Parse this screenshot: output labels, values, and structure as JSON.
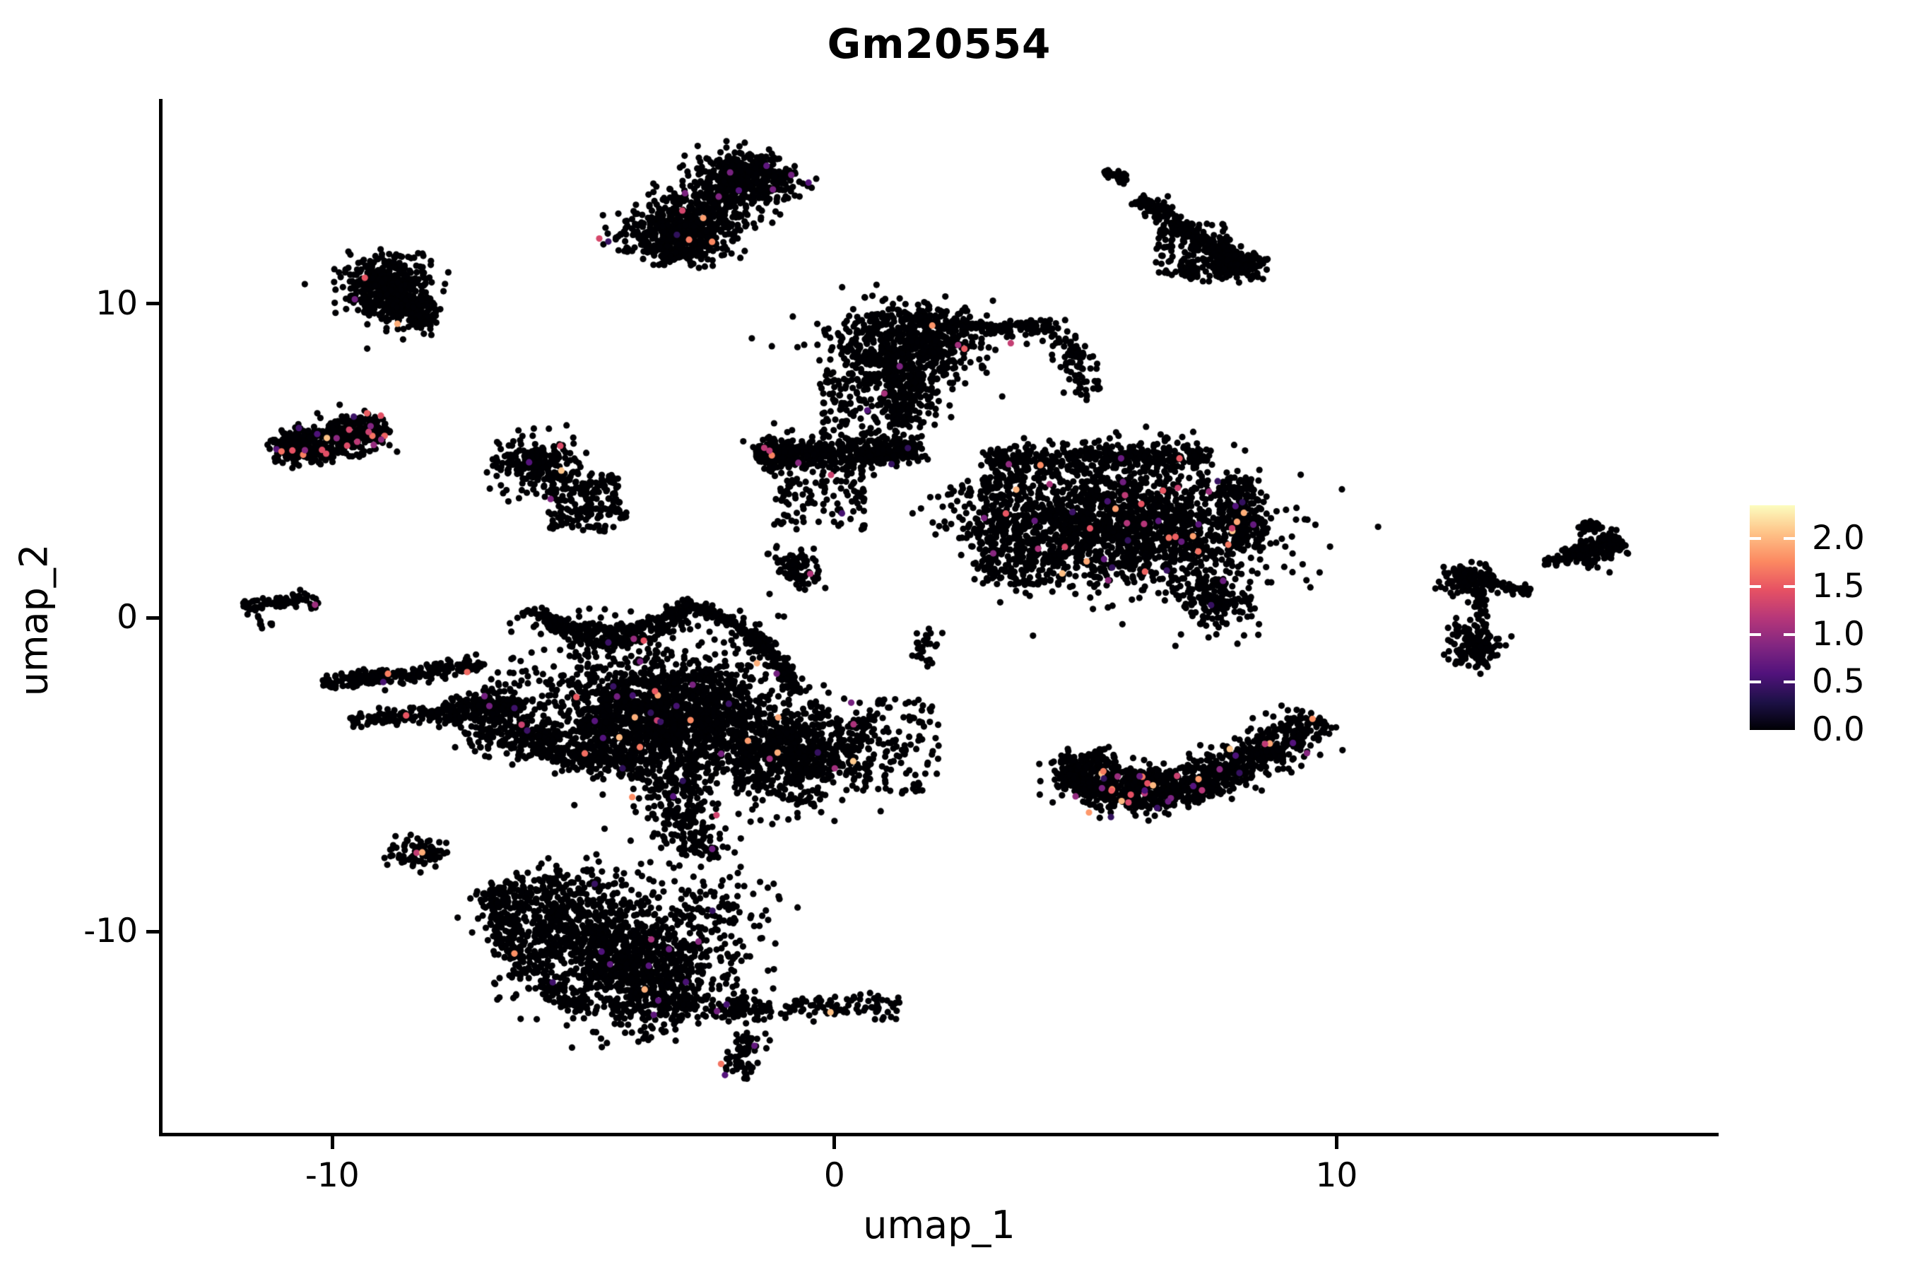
{
  "figure": {
    "title": "Gm20554",
    "background": "#ffffff",
    "axis_color": "#000000"
  },
  "chart_data": {
    "type": "scatter",
    "title": "Gm20554",
    "xlabel": "umap_1",
    "ylabel": "umap_2",
    "xlim": [
      -13.41,
      17.58
    ],
    "ylim": [
      -16.46,
      16.53
    ],
    "x_ticks": [
      -10,
      0,
      10
    ],
    "x_tick_labels": [
      "-10",
      "0",
      "10"
    ],
    "y_ticks": [
      10,
      0,
      -10
    ],
    "y_tick_labels": [
      "10",
      "0",
      "-10"
    ],
    "grid": false,
    "legend_position": "right",
    "point_radius_px": 4.6,
    "zero_expression_color": "#000004",
    "colorbar": {
      "vmin": 0.0,
      "vmax": 2.35,
      "ticks": [
        0.0,
        0.5,
        1.0,
        1.5,
        2.0
      ],
      "tick_labels": [
        "0.0",
        "0.5",
        "1.0",
        "1.5",
        "2.0"
      ],
      "colormap": "magma",
      "stops": [
        [
          0.0,
          "#000004"
        ],
        [
          0.125,
          "#1d1147"
        ],
        [
          0.25,
          "#51127c"
        ],
        [
          0.375,
          "#822681"
        ],
        [
          0.5,
          "#b73779"
        ],
        [
          0.625,
          "#e75263"
        ],
        [
          0.75,
          "#fc8961"
        ],
        [
          0.875,
          "#fec287"
        ],
        [
          1.0,
          "#fcfdbf"
        ]
      ]
    },
    "clusters": [
      {
        "kind": "band",
        "n": 700,
        "cf": 0.008,
        "x1": -3.7,
        "y1": 11.6,
        "x2": -1.4,
        "y2": 14.5,
        "w": 0.5
      },
      {
        "kind": "blob",
        "n": 250,
        "cf": 0.006,
        "cx": -2.9,
        "cy": 12.3,
        "sx": 0.45,
        "sy": 0.4
      },
      {
        "kind": "blob",
        "n": 200,
        "cf": 0.006,
        "cx": -1.7,
        "cy": 14.0,
        "sx": 0.4,
        "sy": 0.35
      },
      {
        "kind": "band",
        "n": 35,
        "cf": 0,
        "x1": 5.35,
        "y1": 14.25,
        "x2": 5.8,
        "y2": 13.95,
        "w": 0.07
      },
      {
        "kind": "band",
        "n": 260,
        "cf": 0.004,
        "x1": 6.05,
        "y1": 13.35,
        "x2": 8.25,
        "y2": 11.05,
        "w": 0.14
      },
      {
        "kind": "blob",
        "n": 160,
        "cf": 0.004,
        "cx": 8.05,
        "cy": 11.25,
        "sx": 0.28,
        "sy": 0.22
      },
      {
        "kind": "uniform",
        "n": 110,
        "cf": 0.004,
        "x0": 6.4,
        "x1": 7.9,
        "y0": 10.85,
        "y1": 12.6
      },
      {
        "kind": "band",
        "n": 30,
        "cf": 0,
        "x1": 6.95,
        "y1": 11.4,
        "x2": 7.15,
        "y2": 10.8,
        "w": 0.1
      },
      {
        "kind": "blob",
        "n": 420,
        "cf": 0.005,
        "cx": -8.95,
        "cy": 10.55,
        "sx": 0.42,
        "sy": 0.5
      },
      {
        "kind": "blob",
        "n": 120,
        "cf": 0.005,
        "cx": -8.35,
        "cy": 9.7,
        "sx": 0.25,
        "sy": 0.3
      },
      {
        "kind": "band",
        "n": 420,
        "cf": 0.045,
        "x1": -11.05,
        "y1": 5.3,
        "x2": -9.0,
        "y2": 6.05,
        "w": 0.28
      },
      {
        "kind": "blob",
        "n": 120,
        "cf": 0.045,
        "cx": -10.6,
        "cy": 5.45,
        "sx": 0.3,
        "sy": 0.25
      },
      {
        "kind": "blob",
        "n": 230,
        "cf": 0.02,
        "cx": -5.95,
        "cy": 4.9,
        "sx": 0.42,
        "sy": 0.45
      },
      {
        "kind": "uniform",
        "n": 130,
        "cf": 0.02,
        "x0": -5.7,
        "x1": -4.3,
        "y0": 2.75,
        "y1": 4.6
      },
      {
        "kind": "band",
        "n": 60,
        "cf": 0.01,
        "x1": -5.0,
        "y1": 4.3,
        "x2": -4.4,
        "y2": 3.0,
        "w": 0.25
      },
      {
        "kind": "band",
        "n": 85,
        "cf": 0.01,
        "x1": -11.75,
        "y1": 0.35,
        "x2": -10.35,
        "y2": 0.6,
        "w": 0.12
      },
      {
        "kind": "blob",
        "n": 7,
        "cf": 0,
        "cx": -11.3,
        "cy": -0.2,
        "sx": 0.08,
        "sy": 0.08
      },
      {
        "kind": "blob",
        "n": 650,
        "cf": 0.01,
        "cx": 1.45,
        "cy": 8.7,
        "sx": 0.75,
        "sy": 0.65
      },
      {
        "kind": "arc",
        "n": 150,
        "cf": 0.005,
        "p": [
          [
            1.6,
            9.6
          ],
          [
            3.0,
            9.0
          ],
          [
            4.35,
            9.35
          ]
        ],
        "w": 0.12
      },
      {
        "kind": "band",
        "n": 90,
        "cf": 0.005,
        "x1": 4.35,
        "y1": 9.3,
        "x2": 5.15,
        "y2": 7.1,
        "w": 0.18
      },
      {
        "kind": "band",
        "n": 200,
        "cf": 0.01,
        "x1": 1.5,
        "y1": 7.95,
        "x2": 1.35,
        "y2": 6.1,
        "w": 0.3
      },
      {
        "kind": "uniform",
        "n": 140,
        "cf": 0.01,
        "x0": -0.3,
        "x1": 1.4,
        "y0": 5.6,
        "y1": 7.9
      },
      {
        "kind": "band",
        "n": 430,
        "cf": 0.01,
        "x1": -1.35,
        "y1": 5.15,
        "x2": 1.7,
        "y2": 5.35,
        "w": 0.2
      },
      {
        "kind": "blob",
        "n": 90,
        "cf": 0.01,
        "cx": -1.25,
        "cy": 5.2,
        "sx": 0.22,
        "sy": 0.28
      },
      {
        "kind": "uniform",
        "n": 130,
        "cf": 0.01,
        "x0": -1.2,
        "x1": 0.6,
        "y0": 2.8,
        "y1": 5.0
      },
      {
        "kind": "blob",
        "n": 90,
        "cf": 0.01,
        "cx": -0.75,
        "cy": 1.6,
        "sx": 0.28,
        "sy": 0.3
      },
      {
        "kind": "blob",
        "n": 1500,
        "cf": 0.02,
        "cx": 5.9,
        "cy": 2.9,
        "sx": 1.25,
        "sy": 1.0
      },
      {
        "kind": "band",
        "n": 380,
        "cf": 0.015,
        "x1": 3.0,
        "y1": 5.05,
        "x2": 7.5,
        "y2": 5.15,
        "w": 0.22
      },
      {
        "kind": "band",
        "n": 220,
        "cf": 0.02,
        "x1": 7.9,
        "y1": 4.4,
        "x2": 8.3,
        "y2": 2.2,
        "w": 0.25
      },
      {
        "kind": "blob",
        "n": 170,
        "cf": 0.02,
        "cx": 7.6,
        "cy": 0.6,
        "sx": 0.35,
        "sy": 0.5
      },
      {
        "kind": "uniform",
        "n": 300,
        "cf": 0.015,
        "x0": 2.9,
        "x1": 4.6,
        "y0": 1.0,
        "y1": 4.6
      },
      {
        "kind": "band",
        "n": 200,
        "cf": 0.015,
        "x1": 2.6,
        "y1": 4.2,
        "x2": 4.2,
        "y2": 1.6,
        "w": 0.5
      },
      {
        "kind": "arc",
        "n": 800,
        "cf": 0.03,
        "p": [
          [
            4.6,
            -4.8
          ],
          [
            6.3,
            -7.3
          ],
          [
            9.65,
            -3.15
          ]
        ],
        "w": 0.3
      },
      {
        "kind": "arc",
        "n": 300,
        "cf": 0.03,
        "p": [
          [
            5.0,
            -4.4
          ],
          [
            6.5,
            -6.2
          ],
          [
            9.3,
            -3.4
          ]
        ],
        "w": 0.25
      },
      {
        "kind": "blob",
        "n": 80,
        "cf": 0.02,
        "cx": 4.75,
        "cy": -4.9,
        "sx": 0.25,
        "sy": 0.3
      },
      {
        "kind": "blob",
        "n": 130,
        "cf": 0.004,
        "cx": 12.6,
        "cy": 1.25,
        "sx": 0.28,
        "sy": 0.25
      },
      {
        "kind": "band",
        "n": 55,
        "cf": 0,
        "x1": 12.95,
        "y1": 1.15,
        "x2": 13.85,
        "y2": 0.8,
        "w": 0.09
      },
      {
        "kind": "band",
        "n": 40,
        "cf": 0,
        "x1": 12.82,
        "y1": 0.85,
        "x2": 12.9,
        "y2": -0.5,
        "w": 0.07
      },
      {
        "kind": "blob",
        "n": 140,
        "cf": 0.004,
        "cx": 12.75,
        "cy": -0.95,
        "sx": 0.26,
        "sy": 0.32
      },
      {
        "kind": "blob",
        "n": 6,
        "cf": 0,
        "cx": 12.35,
        "cy": -0.3,
        "sx": 0.06,
        "sy": 0.06
      },
      {
        "kind": "band",
        "n": 45,
        "cf": 0,
        "x1": 14.15,
        "y1": 1.7,
        "x2": 14.95,
        "y2": 2.1,
        "w": 0.08
      },
      {
        "kind": "band",
        "n": 200,
        "cf": 0.004,
        "x1": 14.8,
        "y1": 1.95,
        "x2": 15.65,
        "y2": 2.5,
        "w": 0.16
      },
      {
        "kind": "blob",
        "n": 35,
        "cf": 0,
        "cx": 15.0,
        "cy": 2.9,
        "sx": 0.12,
        "sy": 0.1
      },
      {
        "kind": "arc",
        "n": 190,
        "cf": 0.008,
        "p": [
          [
            -6.1,
            0.3
          ],
          [
            -4.4,
            -1.2
          ],
          [
            -2.9,
            0.5
          ]
        ],
        "w": 0.1
      },
      {
        "kind": "arc",
        "n": 140,
        "cf": 0.008,
        "p": [
          [
            -5.7,
            -0.2
          ],
          [
            -4.3,
            -1.5
          ],
          [
            -3.0,
            0.1
          ]
        ],
        "w": 0.1
      },
      {
        "kind": "arc",
        "n": 220,
        "cf": 0.008,
        "p": [
          [
            -3.0,
            0.45
          ],
          [
            -1.3,
            -0.3
          ],
          [
            -0.75,
            -2.4
          ]
        ],
        "w": 0.1
      },
      {
        "kind": "band",
        "n": 260,
        "cf": 0.01,
        "x1": -10.2,
        "y1": -2.1,
        "x2": -7.0,
        "y2": -1.5,
        "w": 0.12
      },
      {
        "kind": "band",
        "n": 210,
        "cf": 0.01,
        "x1": -9.6,
        "y1": -3.3,
        "x2": -6.3,
        "y2": -2.7,
        "w": 0.12
      },
      {
        "kind": "blob",
        "n": 1600,
        "cf": 0.012,
        "cx": -3.5,
        "cy": -3.0,
        "sx": 1.05,
        "sy": 0.85
      },
      {
        "kind": "band",
        "n": 350,
        "cf": 0.01,
        "x1": -6.3,
        "y1": -3.9,
        "x2": -2.6,
        "y2": -5.1,
        "w": 0.3
      },
      {
        "kind": "blob",
        "n": 850,
        "cf": 0.012,
        "cx": -0.9,
        "cy": -4.3,
        "sx": 0.85,
        "sy": 0.8
      },
      {
        "kind": "uniform",
        "n": 120,
        "cf": 0.01,
        "x0": 0.3,
        "x1": 2.1,
        "y0": -5.6,
        "y1": -2.6
      },
      {
        "kind": "band",
        "n": 190,
        "cf": 0.01,
        "x1": -3.4,
        "y1": -5.4,
        "x2": -2.5,
        "y2": -7.6,
        "w": 0.35
      },
      {
        "kind": "band",
        "n": 900,
        "cf": 0.012,
        "x1": -6.4,
        "y1": -8.4,
        "x2": -3.1,
        "y2": -12.7,
        "w": 0.6
      },
      {
        "kind": "arc",
        "n": 240,
        "cf": 0.01,
        "p": [
          [
            -6.8,
            -8.6
          ],
          [
            -6.6,
            -11.0
          ],
          [
            -4.9,
            -12.6
          ]
        ],
        "w": 0.18
      },
      {
        "kind": "blob",
        "n": 650,
        "cf": 0.012,
        "cx": -3.8,
        "cy": -10.5,
        "sx": 0.9,
        "sy": 1.0
      },
      {
        "kind": "band",
        "n": 160,
        "cf": 0.01,
        "x1": -2.5,
        "y1": -12.5,
        "x2": 1.4,
        "y2": -12.35,
        "w": 0.2
      },
      {
        "kind": "band",
        "n": 70,
        "cf": 0.01,
        "x1": -1.7,
        "y1": -13.2,
        "x2": -2.0,
        "y2": -14.55,
        "w": 0.18
      },
      {
        "kind": "uniform",
        "n": 200,
        "cf": 0.01,
        "x0": -6.8,
        "x1": -1.2,
        "y0": -12.8,
        "y1": -8.2
      },
      {
        "kind": "blob",
        "n": 80,
        "cf": 0.01,
        "cx": -8.3,
        "cy": -7.5,
        "sx": 0.3,
        "sy": 0.25
      },
      {
        "kind": "uniform",
        "n": 150,
        "cf": 0.008,
        "x0": -6.5,
        "x1": -0.8,
        "y0": -2.2,
        "y1": 0.3
      },
      {
        "kind": "blob",
        "n": 30,
        "cf": 0,
        "cx": 1.8,
        "cy": -0.9,
        "sx": 0.15,
        "sy": 0.3
      },
      {
        "kind": "band",
        "n": 250,
        "cf": 0.01,
        "x1": -7.3,
        "y1": -2.6,
        "x2": -6.3,
        "y2": -4.0,
        "w": 0.4
      }
    ]
  }
}
